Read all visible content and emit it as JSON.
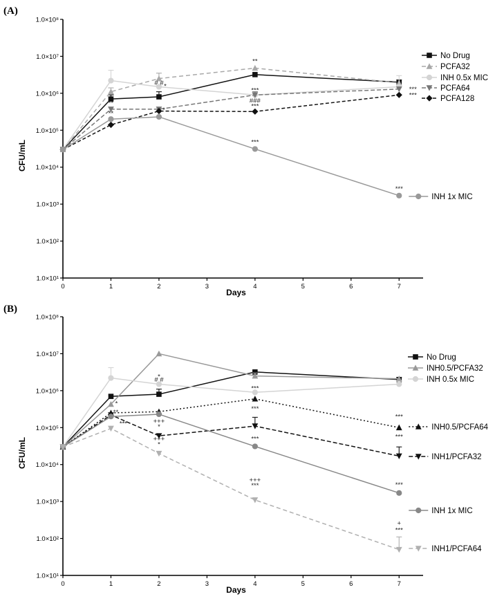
{
  "chart_data": [
    {
      "type": "line",
      "panel_label": "(A)",
      "xlabel": "Days",
      "ylabel": "CFU/mL",
      "log_y": true,
      "xlim": [
        0,
        7.5
      ],
      "ylim": [
        10,
        100000000
      ],
      "x_ticks": [
        0,
        1,
        2,
        3,
        4,
        5,
        6,
        7
      ],
      "y_ticks": [
        10,
        100,
        1000,
        10000,
        100000,
        1000000,
        10000000,
        100000000
      ],
      "y_tick_labels": [
        "1.0×10¹",
        "1.0×10²",
        "1.0×10³",
        "1.0×10⁴",
        "1.0×10⁵",
        "1.0×10⁶",
        "1.0×10⁷",
        "1.0×10⁸"
      ],
      "series": [
        {
          "name": "No Drug",
          "color": "#111111",
          "dash": "",
          "marker": "square",
          "x": [
            0,
            1,
            2,
            4,
            7
          ],
          "y": [
            30000,
            700000,
            800000,
            3200000,
            2000000
          ],
          "err": [
            0,
            200000,
            300000,
            0,
            300000
          ],
          "legend": true
        },
        {
          "name": "PCFA32",
          "color": "#a8a8a8",
          "dash": "6 4",
          "marker": "triangle-up",
          "x": [
            0,
            1,
            2,
            4,
            7
          ],
          "y": [
            30000,
            1100000,
            2500000,
            4800000,
            1900000
          ],
          "err": [
            0,
            300000,
            1000000,
            0,
            0
          ],
          "legend": true
        },
        {
          "name": "INH 0.5x MIC",
          "color": "#d4d4d4",
          "dash": "",
          "marker": "circle",
          "x": [
            0,
            1,
            2,
            4,
            7
          ],
          "y": [
            30000,
            2200000,
            1500000,
            900000,
            1500000
          ],
          "err": [
            0,
            2000000,
            0,
            0,
            1500000
          ],
          "legend": true
        },
        {
          "name": "PCFA64",
          "color": "#777777",
          "dash": "6 3",
          "marker": "triangle-down",
          "x": [
            0,
            1,
            2,
            4,
            7
          ],
          "y": [
            30000,
            370000,
            370000,
            900000,
            1300000
          ],
          "err": [
            0,
            0,
            0,
            200000,
            0
          ],
          "legend": true
        },
        {
          "name": "PCFA128",
          "color": "#111111",
          "dash": "5 3",
          "marker": "diamond",
          "x": [
            0,
            1,
            2,
            4,
            7
          ],
          "y": [
            30000,
            140000,
            330000,
            320000,
            900000
          ],
          "err": [
            0,
            0,
            0,
            0,
            0
          ],
          "legend": true
        },
        {
          "name": "INH 1x MIC",
          "color": "#999999",
          "dash": "",
          "marker": "circle",
          "x": [
            0,
            1,
            2,
            4,
            7
          ],
          "y": [
            30000,
            200000,
            230000,
            31000,
            1700
          ],
          "err": [
            0,
            0,
            0,
            0,
            0
          ],
          "legend": false,
          "end_label": true
        }
      ],
      "annotations": [
        {
          "text": "**",
          "x": 4,
          "y": 4800000,
          "dy": -7
        },
        {
          "text": "*",
          "x": 2,
          "y": 1500000,
          "dx": 9,
          "dy": 2
        },
        {
          "text": "# #",
          "x": 2,
          "y": 800000,
          "dy": -17
        },
        {
          "text": "*",
          "x": 2,
          "y": 370000,
          "dx": 7,
          "dy": 4
        },
        {
          "text": "***",
          "x": 4,
          "y": 900000,
          "dy": -4
        },
        {
          "text": "###",
          "x": 4,
          "y": 900000,
          "dy": 11
        },
        {
          "text": "***",
          "x": 4,
          "y": 900000,
          "dy": 19
        },
        {
          "text": "**",
          "x": 1,
          "y": 370000,
          "dy": -6
        },
        {
          "text": "**",
          "x": 1,
          "y": 200000,
          "dy": -5
        },
        {
          "text": "***",
          "x": 4,
          "y": 31000,
          "dy": -7
        },
        {
          "text": "***",
          "x": 7,
          "y": 1700,
          "dy": -7
        },
        {
          "text": "***",
          "x": 7,
          "y": 1300000,
          "dx": 20,
          "dy": 3
        },
        {
          "text": "***",
          "x": 7,
          "y": 900000,
          "dx": 20,
          "dy": 3
        }
      ]
    },
    {
      "type": "line",
      "panel_label": "(B)",
      "xlabel": "Days",
      "ylabel": "CFU/mL",
      "log_y": true,
      "xlim": [
        0,
        7.5
      ],
      "ylim": [
        10,
        100000000
      ],
      "x_ticks": [
        0,
        1,
        2,
        3,
        4,
        5,
        6,
        7
      ],
      "y_ticks": [
        10,
        100,
        1000,
        10000,
        100000,
        1000000,
        10000000,
        100000000
      ],
      "y_tick_labels": [
        "1.0×10¹",
        "1.0×10²",
        "1.0×10³",
        "1.0×10⁴",
        "1.0×10⁵",
        "1.0×10⁶",
        "1.0×10⁷",
        "1.0×10⁸"
      ],
      "series": [
        {
          "name": "No Drug",
          "color": "#111111",
          "dash": "",
          "marker": "square",
          "x": [
            0,
            1,
            2,
            4,
            7
          ],
          "y": [
            30000,
            700000,
            800000,
            3200000,
            2000000
          ],
          "err": [
            0,
            0,
            300000,
            0,
            300000
          ],
          "legend": true
        },
        {
          "name": "INH0.5/PCFA32",
          "color": "#999999",
          "dash": "",
          "marker": "triangle-up",
          "x": [
            0,
            1,
            2,
            4,
            7
          ],
          "y": [
            30000,
            430000,
            10000000,
            2500000,
            2100000
          ],
          "err": [
            0,
            0,
            0,
            500000,
            0
          ],
          "legend": true
        },
        {
          "name": "INH 0.5x MIC",
          "color": "#d4d4d4",
          "dash": "",
          "marker": "circle",
          "x": [
            0,
            1,
            2,
            4,
            7
          ],
          "y": [
            30000,
            2200000,
            1500000,
            900000,
            1500000
          ],
          "err": [
            0,
            2000000,
            0,
            0,
            300000
          ],
          "legend": true
        },
        {
          "name": "INH0.5/PCFA64",
          "color": "#111111",
          "dash": "2 3",
          "marker": "triangle-up",
          "x": [
            0,
            1,
            2,
            4,
            7
          ],
          "y": [
            30000,
            250000,
            270000,
            600000,
            100000
          ],
          "err": [
            0,
            0,
            0,
            0,
            0
          ],
          "legend": false,
          "end_label": true
        },
        {
          "name": "INH1/PCFA32",
          "color": "#111111",
          "dash": "6 3",
          "marker": "triangle-down",
          "x": [
            0,
            1,
            2,
            4,
            7
          ],
          "y": [
            30000,
            220000,
            60000,
            110000,
            17000
          ],
          "err": [
            0,
            0,
            0,
            80000,
            13000
          ],
          "legend": false,
          "end_label": true
        },
        {
          "name": "INH 1x MIC",
          "color": "#888888",
          "dash": "",
          "marker": "circle",
          "x": [
            0,
            1,
            2,
            4,
            7
          ],
          "y": [
            30000,
            200000,
            230000,
            31000,
            1700
          ],
          "err": [
            0,
            0,
            0,
            0,
            0
          ],
          "legend": false,
          "end_label": true
        },
        {
          "name": "INH1/PCFA64",
          "color": "#b0b0b0",
          "dash": "6 4",
          "marker": "triangle-down",
          "x": [
            0,
            1,
            2,
            4,
            7
          ],
          "y": [
            30000,
            95000,
            20000,
            1100,
            50
          ],
          "err": [
            0,
            0,
            0,
            0,
            60
          ],
          "legend": false,
          "end_label": true
        }
      ],
      "annotations": [
        {
          "text": "*",
          "x": 2,
          "y": 1500000,
          "dy": -8
        },
        {
          "text": "# #",
          "x": 2,
          "y": 800000,
          "dy": -18
        },
        {
          "text": "***",
          "x": 4,
          "y": 900000,
          "dy": -3
        },
        {
          "text": "*",
          "x": 1,
          "y": 430000,
          "dx": 8,
          "dy": 2
        },
        {
          "text": "**",
          "x": 1,
          "y": 250000,
          "dx": 7,
          "dy": 2
        },
        {
          "text": "***",
          "x": 1,
          "y": 95000,
          "dx": 18,
          "dy": -4
        },
        {
          "text": "+++",
          "x": 2,
          "y": 60000,
          "dy": -18
        },
        {
          "text": "*",
          "x": 2,
          "y": 60000,
          "dy": -10
        },
        {
          "text": "+++",
          "x": 2,
          "y": 20000,
          "dy": -18
        },
        {
          "text": "*",
          "x": 2,
          "y": 20000,
          "dy": -10
        },
        {
          "text": "***",
          "x": 4,
          "y": 110000,
          "dy": -22
        },
        {
          "text": "***",
          "x": 4,
          "y": 31000,
          "dy": -8
        },
        {
          "text": "+++",
          "x": 4,
          "y": 1100,
          "dy": -26
        },
        {
          "text": "***",
          "x": 4,
          "y": 1100,
          "dy": -18
        },
        {
          "text": "***",
          "x": 7,
          "y": 100000,
          "dy": -13
        },
        {
          "text": "***",
          "x": 7,
          "y": 17000,
          "dy": -25
        },
        {
          "text": "***",
          "x": 7,
          "y": 1700,
          "dy": -9
        },
        {
          "text": "+",
          "x": 7,
          "y": 50,
          "dy": -35
        },
        {
          "text": "***",
          "x": 7,
          "y": 50,
          "dy": -25
        }
      ]
    }
  ]
}
